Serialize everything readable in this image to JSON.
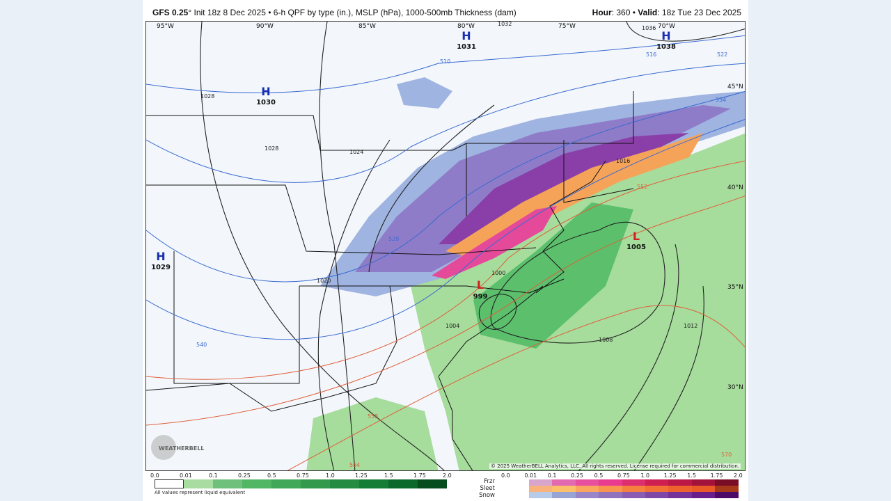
{
  "header": {
    "model": "GFS 0.25",
    "degree_mark": "°",
    "init": " Init 18z 8 Dec 2025 • 6-h QPF by type (in.), MSLP (hPa), 1000-500mb Thickness (dam)",
    "hour_label": "Hour",
    "hour": ": 360 • ",
    "valid_label": "Valid",
    "valid": ": 18z Tue 23 Dec 2025"
  },
  "map": {
    "longitudes": [
      "95°W",
      "90°W",
      "85°W",
      "80°W",
      "75°W",
      "70°W"
    ],
    "latitudes": [
      "45°N",
      "40°N",
      "35°N",
      "30°N"
    ],
    "pressure_centers": [
      {
        "type": "H",
        "value": "1030"
      },
      {
        "type": "H",
        "value": "1031"
      },
      {
        "type": "H",
        "value": "1038"
      },
      {
        "type": "H",
        "value": "1029"
      },
      {
        "type": "L",
        "value": "1005"
      },
      {
        "type": "L",
        "value": "999"
      }
    ],
    "isobar_labels": [
      "1028",
      "1028",
      "1024",
      "1020",
      "1016",
      "1036",
      "1032",
      "1008",
      "1012",
      "1004",
      "1000"
    ],
    "thickness_labels": [
      "510",
      "516",
      "522",
      "534",
      "528",
      "540",
      "552",
      "558",
      "564",
      "570"
    ],
    "colors": {
      "rain_light": "#a6dc9c",
      "rain_mid": "#5bbf6c",
      "snow_light": "#9fb4e0",
      "snow_mid": "#8f7cc8",
      "snow_heavy": "#8a3fa8",
      "sleet": "#f6a35a",
      "frzr": "#e54a9a",
      "thickness": "#e0603a",
      "isobar": "#222222",
      "thickness_cold": "#3a6ad0"
    },
    "copyright": "© 2025 WeatherBELL Analytics, LLC. All rights reserved. License required for commercial distribution.",
    "logo_text": "WEATHERBELL"
  },
  "legend": {
    "rain_ticks": [
      "0.0",
      "0.01",
      "0.1",
      "0.25",
      "0.5",
      "0.75",
      "1.0",
      "1.25",
      "1.5",
      "1.75",
      "2.0"
    ],
    "rain_colors": [
      "#ffffff",
      "#a8dca0",
      "#6fc07a",
      "#52b765",
      "#40a858",
      "#33994c",
      "#258b40",
      "#157d35",
      "#0b6a2b",
      "#064d1e"
    ],
    "note": "All values represent liquid equivalent",
    "type_ticks": [
      "0.0",
      "0.01",
      "0.1",
      "0.25",
      "0.5",
      "0.75",
      "1.0",
      "1.25",
      "1.5",
      "1.75",
      "2.0"
    ],
    "types": [
      "Frzr",
      "Sleet",
      "Snow"
    ],
    "frzr_colors": [
      "#d8a6cc",
      "#e26ab0",
      "#e8509f",
      "#e83b8f",
      "#dd2e6e",
      "#cf1f52",
      "#bb1845",
      "#a3123a",
      "#7a0d26"
    ],
    "sleet_colors": [
      "#f9b27c",
      "#fcc06a",
      "#fba65e",
      "#f99350",
      "#f58040",
      "#f27035",
      "#ee622e",
      "#e95a28",
      "#a8381a"
    ],
    "snow_colors": [
      "#b7cbe8",
      "#9aa3d6",
      "#9886c8",
      "#9172bd",
      "#8a5db2",
      "#8048a6",
      "#75329a",
      "#6a1e8b",
      "#4d0a66"
    ]
  }
}
